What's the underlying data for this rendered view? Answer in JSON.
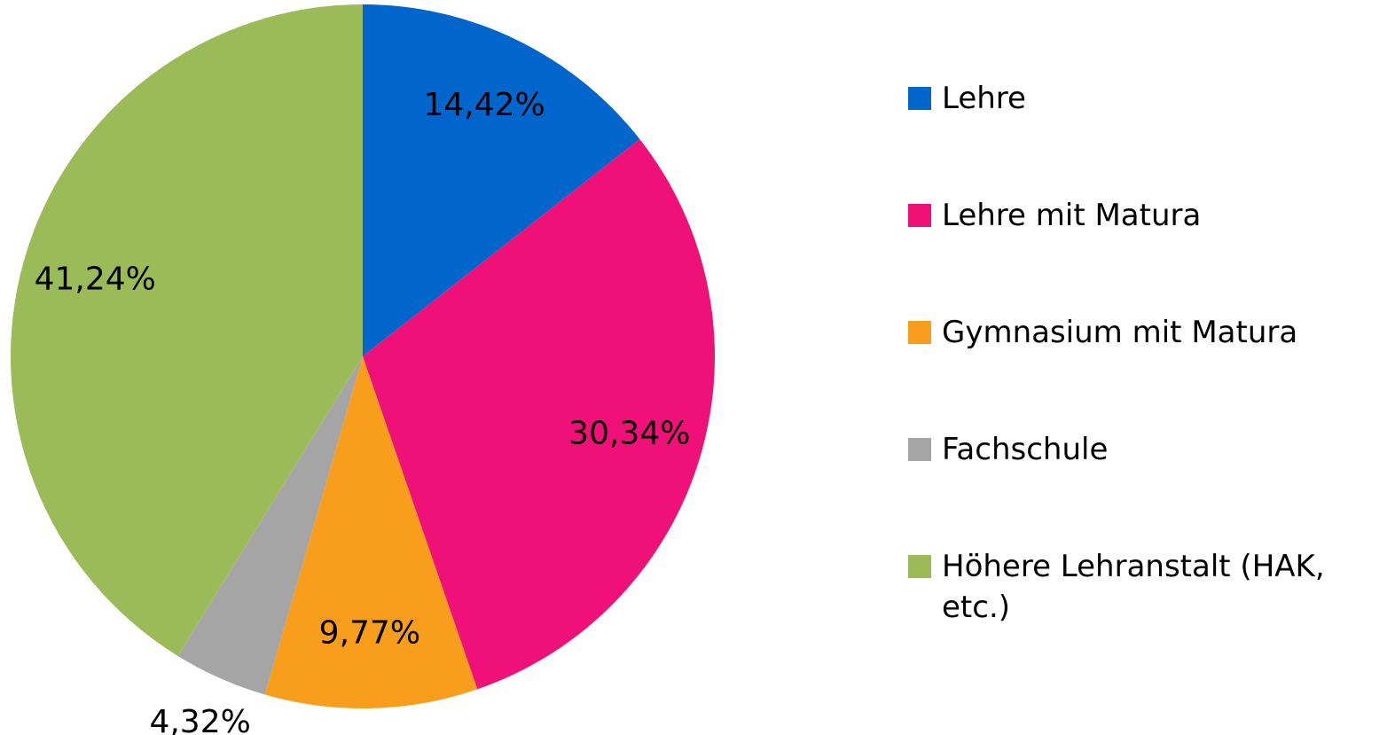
{
  "chart_data": {
    "type": "pie",
    "categories": [
      "Lehre",
      "Lehre mit Matura",
      "Gymnasium mit Matura",
      "Fachschule",
      "Höhere Lehranstalt (HAK, etc.)"
    ],
    "values": [
      14.42,
      30.34,
      9.77,
      4.32,
      41.24
    ],
    "value_labels": [
      "14,42%",
      "30,34%",
      "9,77%",
      "4,32%",
      "41,24%"
    ],
    "colors": [
      "#0066cc",
      "#ef1178",
      "#f99d1c",
      "#a5a5a5",
      "#9bbb59"
    ],
    "legend": "right"
  }
}
